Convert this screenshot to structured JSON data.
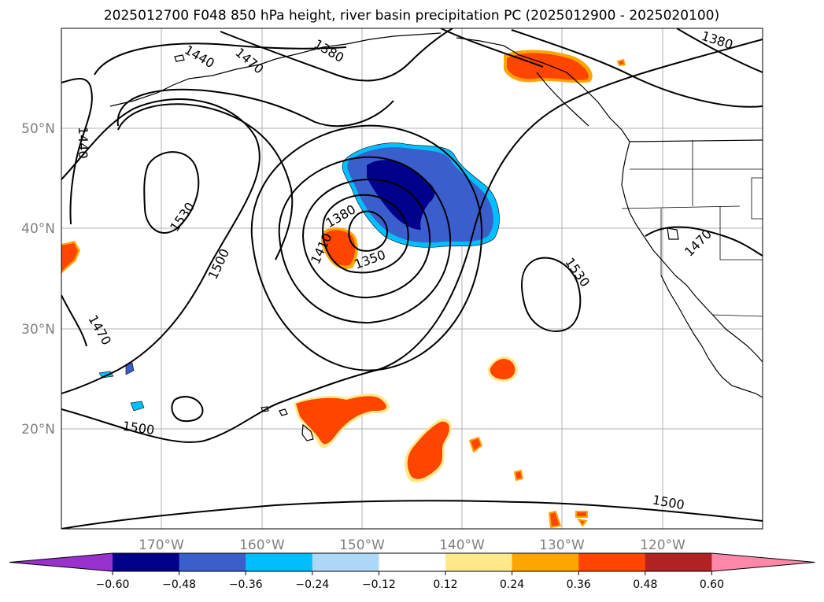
{
  "title": "2025012700 F048 850 hPa height, river basin precipitation PC (2025012900 - 2025020100)",
  "map": {
    "projection": "equirectangular",
    "lon_range": [
      -180,
      -110
    ],
    "lat_range": [
      10,
      60
    ],
    "lon_ticks": [
      "170°W",
      "160°W",
      "150°W",
      "140°W",
      "130°W",
      "120°W"
    ],
    "lat_ticks": [
      "20°N",
      "30°N",
      "40°N",
      "50°N"
    ],
    "gridlines": true
  },
  "contour_labels": [
    "1440",
    "1470",
    "1380",
    "1380",
    "1440",
    "1530",
    "1500",
    "1380",
    "1410",
    "1350",
    "1530",
    "1470",
    "1470",
    "1500",
    "1500"
  ],
  "colorbar": {
    "orientation": "horizontal",
    "extend": "both",
    "ticks": [
      "−0.60",
      "−0.48",
      "−0.36",
      "−0.24",
      "−0.12",
      "0.12",
      "0.24",
      "0.36",
      "0.48",
      "0.60"
    ],
    "colors": {
      "under": "#9932CC",
      "bins": [
        "#00008B",
        "#3A5FCD",
        "#00BFFF",
        "#ADD8F8",
        "#FFFFFF",
        "#FFE98A",
        "#FFA500",
        "#FF4500",
        "#B22222"
      ],
      "over": "#FF88AA"
    }
  }
}
